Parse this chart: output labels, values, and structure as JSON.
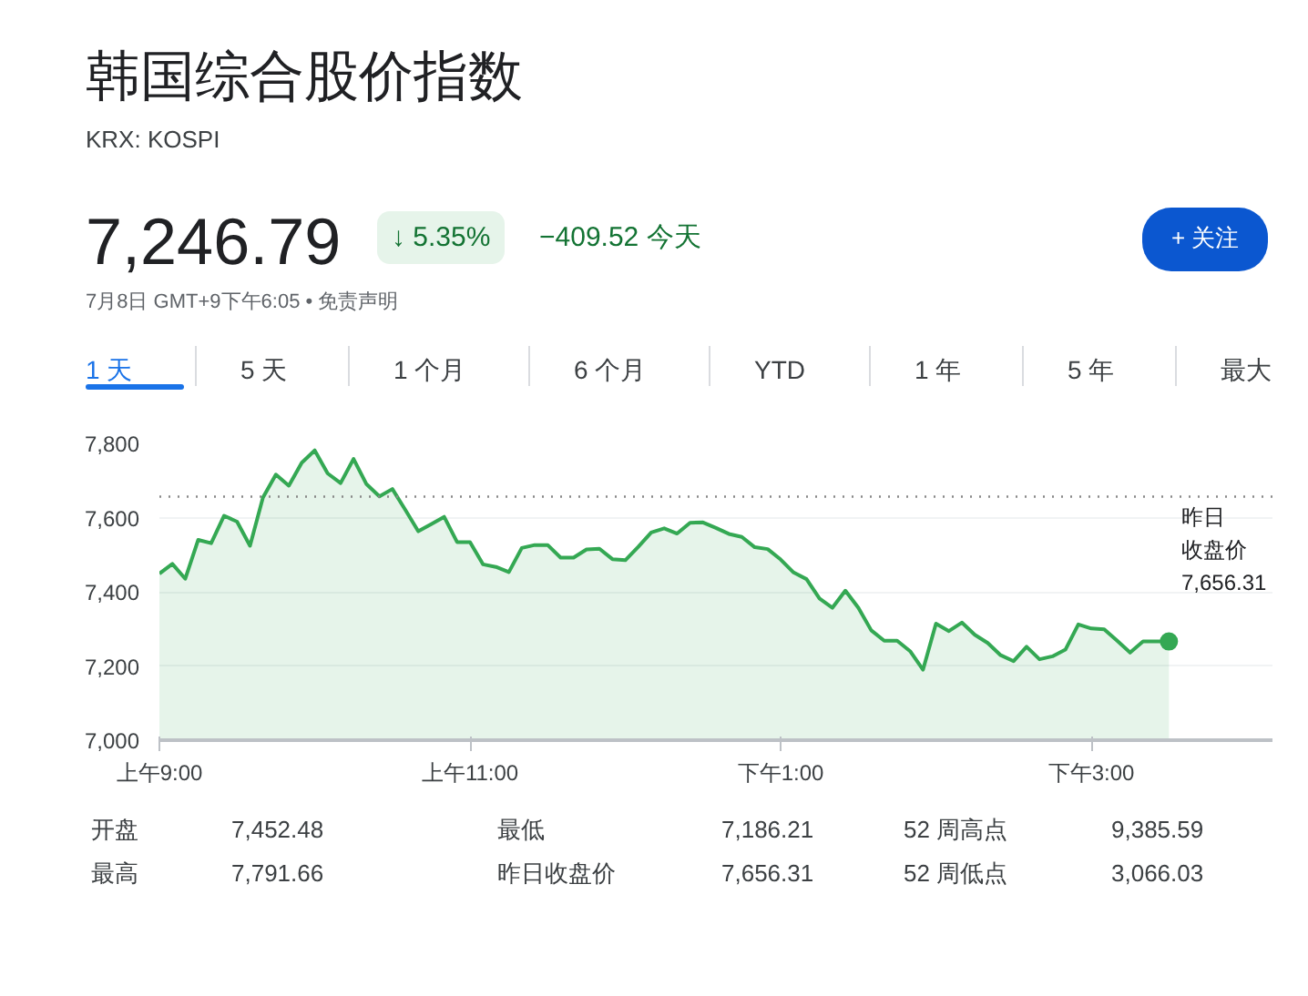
{
  "chart_data": {
    "type": "area",
    "title": "韩国综合股价指数",
    "subtitle": "KRX: KOSPI",
    "annotations": [
      "7,246.79",
      "↓ 5.35%",
      "−409.52 今天",
      "7月8日 GMT+9下午6:05 • 免责声明",
      "+ 关注",
      "1 天",
      "5 天",
      "1 个月",
      "6 个月",
      "YTD",
      "1 年",
      "5 年",
      "最大",
      "开盘",
      "7,452.48",
      "最低",
      "7,186.21",
      "52 周高点",
      "9,385.59",
      "最高",
      "7,791.66",
      "昨日收盘价",
      "7,656.31",
      "52 周低点",
      "3,066.03"
    ],
    "categories": [
      "上午9:00",
      null,
      null,
      null,
      null,
      null,
      null,
      null,
      null,
      null,
      null,
      null,
      null,
      null,
      null,
      null,
      null,
      null,
      null,
      null,
      null,
      null,
      null,
      null,
      "上午11:00",
      null,
      null,
      null,
      null,
      null,
      null,
      null,
      null,
      null,
      null,
      null,
      null,
      null,
      null,
      null,
      null,
      null,
      null,
      null,
      null,
      null,
      null,
      null,
      "下午1:00",
      null,
      null,
      null,
      null,
      null,
      null,
      null,
      null,
      null,
      null,
      null,
      null,
      null,
      null,
      null,
      null,
      null,
      null,
      null,
      null,
      null,
      null,
      null,
      "下午3:00",
      null,
      null,
      null,
      null,
      null,
      null,
      null,
      null,
      null,
      null,
      null,
      null,
      null,
      null
    ],
    "series": [
      {
        "color": "#34a853",
        "values": [
          7449,
          7475,
          7435,
          7540,
          7531,
          7605,
          7589,
          7524,
          7654,
          7716,
          7686,
          7748,
          7781,
          7719,
          7693,
          7758,
          7690,
          7657,
          7677,
          7621,
          7563,
          7582,
          7602,
          7534,
          7534,
          7474,
          7467,
          7453,
          7518,
          7526,
          7526,
          7492,
          7492,
          7514,
          7516,
          7488,
          7485,
          7521,
          7560,
          7571,
          7557,
          7586,
          7587,
          7572,
          7556,
          7548,
          7520,
          7515,
          7487,
          7452,
          7434,
          7382,
          7357,
          7403,
          7357,
          7296,
          7268,
          7268,
          7240,
          7190,
          7314,
          7294,
          7317,
          7284,
          7262,
          7229,
          7213,
          7252,
          7218,
          7226,
          7244,
          7312,
          7301,
          7299,
          7268,
          7236,
          7266,
          7266,
          7266,
          null,
          null,
          null,
          null,
          null,
          null,
          null,
          null
        ]
      },
      {
        "type": "scatter",
        "color": "#34a853",
        "values": [
          null,
          null,
          null,
          null,
          null,
          null,
          null,
          null,
          null,
          null,
          null,
          null,
          null,
          null,
          null,
          null,
          null,
          null,
          null,
          null,
          null,
          null,
          null,
          null,
          null,
          null,
          null,
          null,
          null,
          null,
          null,
          null,
          null,
          null,
          null,
          null,
          null,
          null,
          null,
          null,
          null,
          null,
          null,
          null,
          null,
          null,
          null,
          null,
          null,
          null,
          null,
          null,
          null,
          null,
          null,
          null,
          null,
          null,
          null,
          null,
          null,
          null,
          null,
          null,
          null,
          null,
          null,
          null,
          null,
          null,
          null,
          null,
          null,
          null,
          null,
          null,
          null,
          null,
          7266,
          null,
          null,
          null,
          null,
          null,
          null,
          null,
          null
        ]
      }
    ],
    "ylim": [
      7000,
      7800
    ],
    "yticks": [
      {
        "value": 7000,
        "label": "7,000"
      },
      {
        "value": 7200,
        "label": "7,200"
      },
      {
        "value": 7400,
        "label": "7,400"
      },
      {
        "value": 7600,
        "label": "7,600"
      },
      {
        "value": 7800,
        "label": "7,800"
      }
    ],
    "grid": "y",
    "ref_lines": [
      {
        "axis": "y",
        "value": 7656.31,
        "label": "昨日收盘价\n7,656.31",
        "color": "#888888",
        "line_style": "dotted"
      }
    ]
  }
}
